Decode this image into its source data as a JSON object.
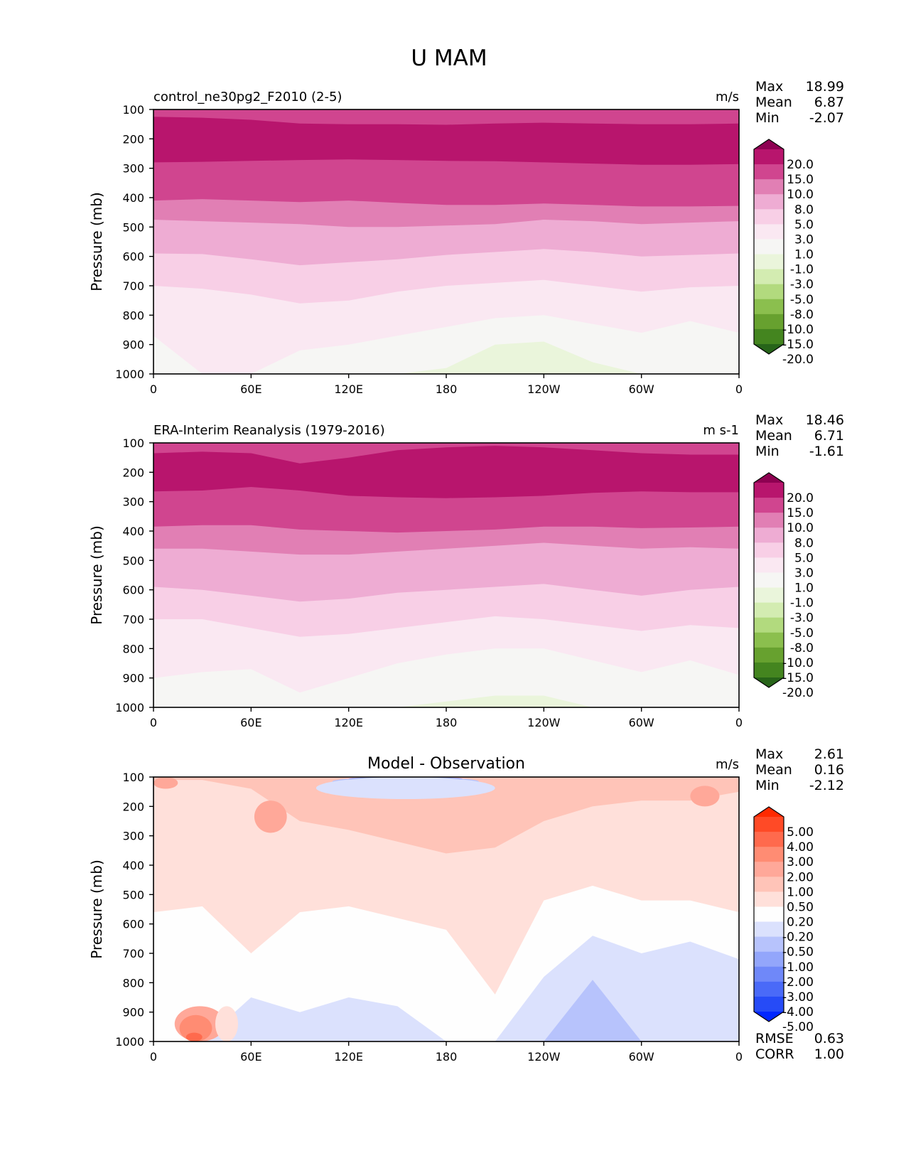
{
  "title": "U MAM",
  "chart_data": [
    {
      "type": "heatmap",
      "subtype": "filled-contour",
      "title_left": "control_ne30pg2_F2010 (2-5)",
      "title_center": "",
      "units": "m/s",
      "ylabel": "Pressure (mb)",
      "xlabel": "",
      "x_range": [
        0,
        360
      ],
      "ylim": [
        1000,
        100
      ],
      "yticks": [
        "100",
        "200",
        "300",
        "400",
        "500",
        "600",
        "700",
        "800",
        "900",
        "1000"
      ],
      "ytick_values": [
        100,
        200,
        300,
        400,
        500,
        600,
        700,
        800,
        900,
        1000
      ],
      "xticks": [
        "0",
        "60E",
        "120E",
        "180",
        "120W",
        "60W",
        "0"
      ],
      "xtick_values": [
        0,
        60,
        120,
        180,
        240,
        300,
        360
      ],
      "stats": [
        {
          "label": "Max",
          "value": "18.99"
        },
        {
          "label": "Mean",
          "value": "6.87"
        },
        {
          "label": "Min",
          "value": "-2.07"
        }
      ],
      "colorbar": {
        "extend": "both",
        "levels": [
          "20.0",
          "15.0",
          "10.0",
          "8.0",
          "5.0",
          "3.0",
          "1.0",
          "-1.0",
          "-3.0",
          "-5.0",
          "-8.0",
          "-10.0",
          "-15.0",
          "-20.0"
        ],
        "colors_top_to_bottom": [
          "#8e0152",
          "#b8156d",
          "#d0458f",
          "#e17fb4",
          "#eeacd3",
          "#f8cfe6",
          "#fae8f2",
          "#f6f6f4",
          "#eaf5db",
          "#d3ecb1",
          "#b2da7e",
          "#8bbf4e",
          "#67a12f",
          "#44851f",
          "#276419"
        ]
      },
      "bands": [
        {
          "color": "#d0458f",
          "top": [
            100,
            100,
            100,
            100,
            100,
            100,
            100,
            100,
            100,
            100,
            100,
            100,
            100
          ]
        },
        {
          "color": "#b8156d",
          "top": [
            125,
            128,
            135,
            148,
            150,
            150,
            152,
            148,
            145,
            148,
            150,
            150,
            148
          ]
        },
        {
          "color": "#d0458f",
          "top": [
            280,
            278,
            275,
            272,
            270,
            272,
            275,
            276,
            280,
            284,
            288,
            288,
            286
          ]
        },
        {
          "color": "#e17fb4",
          "top": [
            410,
            405,
            410,
            415,
            410,
            418,
            425,
            425,
            420,
            425,
            430,
            430,
            428
          ]
        },
        {
          "color": "#eeacd3",
          "top": [
            475,
            480,
            485,
            490,
            500,
            500,
            495,
            490,
            475,
            480,
            490,
            485,
            480
          ]
        },
        {
          "color": "#f8cfe6",
          "top": [
            590,
            592,
            610,
            630,
            620,
            610,
            595,
            585,
            575,
            585,
            600,
            595,
            590
          ]
        },
        {
          "color": "#fae8f2",
          "top": [
            700,
            710,
            730,
            760,
            750,
            720,
            700,
            690,
            680,
            700,
            720,
            705,
            700
          ]
        },
        {
          "color": "#f6f6f4",
          "top": [
            870,
            1000,
            1000,
            920,
            900,
            870,
            840,
            810,
            800,
            830,
            860,
            820,
            860
          ]
        },
        {
          "color": "#eaf5db",
          "top": [
            1000,
            1000,
            1000,
            1000,
            1000,
            1000,
            980,
            900,
            890,
            960,
            1000,
            1000,
            1000
          ]
        }
      ]
    },
    {
      "type": "heatmap",
      "subtype": "filled-contour",
      "title_left": "ERA-Interim Reanalysis (1979-2016)",
      "title_center": "",
      "units": "m s-1",
      "ylabel": "Pressure (mb)",
      "xlabel": "",
      "x_range": [
        0,
        360
      ],
      "ylim": [
        1000,
        100
      ],
      "yticks": [
        "100",
        "200",
        "300",
        "400",
        "500",
        "600",
        "700",
        "800",
        "900",
        "1000"
      ],
      "ytick_values": [
        100,
        200,
        300,
        400,
        500,
        600,
        700,
        800,
        900,
        1000
      ],
      "xticks": [
        "0",
        "60E",
        "120E",
        "180",
        "120W",
        "60W",
        "0"
      ],
      "xtick_values": [
        0,
        60,
        120,
        180,
        240,
        300,
        360
      ],
      "stats": [
        {
          "label": "Max",
          "value": "18.46"
        },
        {
          "label": "Mean",
          "value": "6.71"
        },
        {
          "label": "Min",
          "value": "-1.61"
        }
      ],
      "colorbar": {
        "extend": "both",
        "levels": [
          "20.0",
          "15.0",
          "10.0",
          "8.0",
          "5.0",
          "3.0",
          "1.0",
          "-1.0",
          "-3.0",
          "-5.0",
          "-8.0",
          "-10.0",
          "-15.0",
          "-20.0"
        ],
        "colors_top_to_bottom": [
          "#8e0152",
          "#b8156d",
          "#d0458f",
          "#e17fb4",
          "#eeacd3",
          "#f8cfe6",
          "#fae8f2",
          "#f6f6f4",
          "#eaf5db",
          "#d3ecb1",
          "#b2da7e",
          "#8bbf4e",
          "#67a12f",
          "#44851f",
          "#276419"
        ]
      },
      "bands": [
        {
          "color": "#d0458f",
          "top": [
            100,
            100,
            100,
            100,
            100,
            100,
            100,
            100,
            100,
            100,
            100,
            100,
            100
          ]
        },
        {
          "color": "#b8156d",
          "top": [
            135,
            130,
            135,
            170,
            150,
            125,
            115,
            110,
            115,
            125,
            135,
            140,
            140
          ]
        },
        {
          "color": "#d0458f",
          "top": [
            265,
            262,
            250,
            262,
            280,
            285,
            288,
            285,
            280,
            270,
            265,
            268,
            268
          ]
        },
        {
          "color": "#e17fb4",
          "top": [
            385,
            380,
            380,
            395,
            400,
            405,
            400,
            395,
            385,
            385,
            390,
            388,
            385
          ]
        },
        {
          "color": "#eeacd3",
          "top": [
            460,
            460,
            470,
            480,
            480,
            470,
            460,
            450,
            440,
            450,
            460,
            455,
            460
          ]
        },
        {
          "color": "#f8cfe6",
          "top": [
            590,
            600,
            620,
            640,
            630,
            610,
            600,
            590,
            580,
            600,
            620,
            600,
            590
          ]
        },
        {
          "color": "#fae8f2",
          "top": [
            700,
            700,
            730,
            760,
            750,
            730,
            710,
            690,
            700,
            720,
            740,
            720,
            730
          ]
        },
        {
          "color": "#f6f6f4",
          "top": [
            900,
            880,
            870,
            950,
            900,
            850,
            820,
            800,
            800,
            840,
            880,
            840,
            890
          ]
        },
        {
          "color": "#eaf5db",
          "top": [
            1000,
            1000,
            1000,
            1000,
            1000,
            1000,
            980,
            960,
            960,
            1000,
            1000,
            1000,
            1000
          ]
        }
      ]
    },
    {
      "type": "heatmap",
      "subtype": "filled-contour",
      "title_left": "",
      "title_center": "Model - Observation",
      "units": "m/s",
      "ylabel": "Pressure (mb)",
      "xlabel": "",
      "x_range": [
        0,
        360
      ],
      "ylim": [
        1000,
        100
      ],
      "yticks": [
        "100",
        "200",
        "300",
        "400",
        "500",
        "600",
        "700",
        "800",
        "900",
        "1000"
      ],
      "ytick_values": [
        100,
        200,
        300,
        400,
        500,
        600,
        700,
        800,
        900,
        1000
      ],
      "xticks": [
        "0",
        "60E",
        "120E",
        "180",
        "120W",
        "60W",
        "0"
      ],
      "xtick_values": [
        0,
        60,
        120,
        180,
        240,
        300,
        360
      ],
      "stats": [
        {
          "label": "Max",
          "value": "2.61"
        },
        {
          "label": "Mean",
          "value": "0.16"
        },
        {
          "label": "Min",
          "value": "-2.12"
        }
      ],
      "footer_stats": [
        {
          "label": "RMSE",
          "value": "0.63"
        },
        {
          "label": "CORR",
          "value": "1.00"
        }
      ],
      "colorbar": {
        "extend": "both",
        "levels": [
          "5.00",
          "4.00",
          "3.00",
          "2.00",
          "1.00",
          "0.50",
          "0.20",
          "-0.20",
          "-0.50",
          "-1.00",
          "-2.00",
          "-3.00",
          "-4.00",
          "-5.00"
        ],
        "colors_top_to_bottom": [
          "#ff2a00",
          "#ff4a26",
          "#ff6a4d",
          "#ff8c73",
          "#ffa899",
          "#ffc4b8",
          "#ffe0da",
          "#fefefe",
          "#dbe1fd",
          "#b7c3fc",
          "#93a6fb",
          "#6f88f9",
          "#4a6af8",
          "#264bf7",
          "#0026ff"
        ]
      },
      "bands": [
        {
          "color": "#ffc4b8",
          "top": [
            100,
            100,
            100,
            100,
            100,
            100,
            100,
            100,
            100,
            100,
            100,
            100,
            100
          ]
        },
        {
          "color": "#ffe0da",
          "top": [
            110,
            110,
            140,
            250,
            280,
            320,
            360,
            340,
            250,
            200,
            180,
            180,
            150
          ]
        },
        {
          "color": "#fefefe",
          "top": [
            560,
            540,
            700,
            560,
            540,
            580,
            620,
            840,
            520,
            470,
            520,
            520,
            560
          ]
        },
        {
          "color": "#dbe1fd",
          "top": [
            1000,
            1000,
            850,
            900,
            850,
            880,
            1000,
            1000,
            780,
            640,
            700,
            660,
            720
          ]
        },
        {
          "color": "#b7c3fc",
          "top": [
            1000,
            1000,
            1000,
            1000,
            1000,
            1000,
            1000,
            1000,
            1000,
            790,
            1000,
            1000,
            1000
          ]
        }
      ],
      "patches": [
        {
          "color": "#ffa899",
          "lon": [
            0,
            15
          ],
          "p": [
            100,
            140
          ]
        },
        {
          "color": "#ffa899",
          "lon": [
            62,
            82
          ],
          "p": [
            180,
            290
          ]
        },
        {
          "color": "#ffa899",
          "lon": [
            330,
            348
          ],
          "p": [
            130,
            200
          ]
        },
        {
          "color": "#ffa899",
          "lon": [
            13,
            44
          ],
          "p": [
            880,
            1000
          ]
        },
        {
          "color": "#ff8c73",
          "lon": [
            16,
            36
          ],
          "p": [
            910,
            1000
          ]
        },
        {
          "color": "#ff6a4d",
          "lon": [
            20,
            30
          ],
          "p": [
            970,
            1000
          ]
        },
        {
          "color": "#ffe0da",
          "lon": [
            38,
            52
          ],
          "p": [
            880,
            1000
          ]
        },
        {
          "color": "#b7c3fc",
          "lon": [
            110,
            200
          ],
          "p": [
            100,
            130
          ]
        },
        {
          "color": "#93a6fb",
          "lon": [
            120,
            190
          ],
          "p": [
            100,
            112
          ]
        },
        {
          "color": "#dbe1fd",
          "lon": [
            100,
            210
          ],
          "p": [
            100,
            175
          ]
        }
      ]
    }
  ]
}
